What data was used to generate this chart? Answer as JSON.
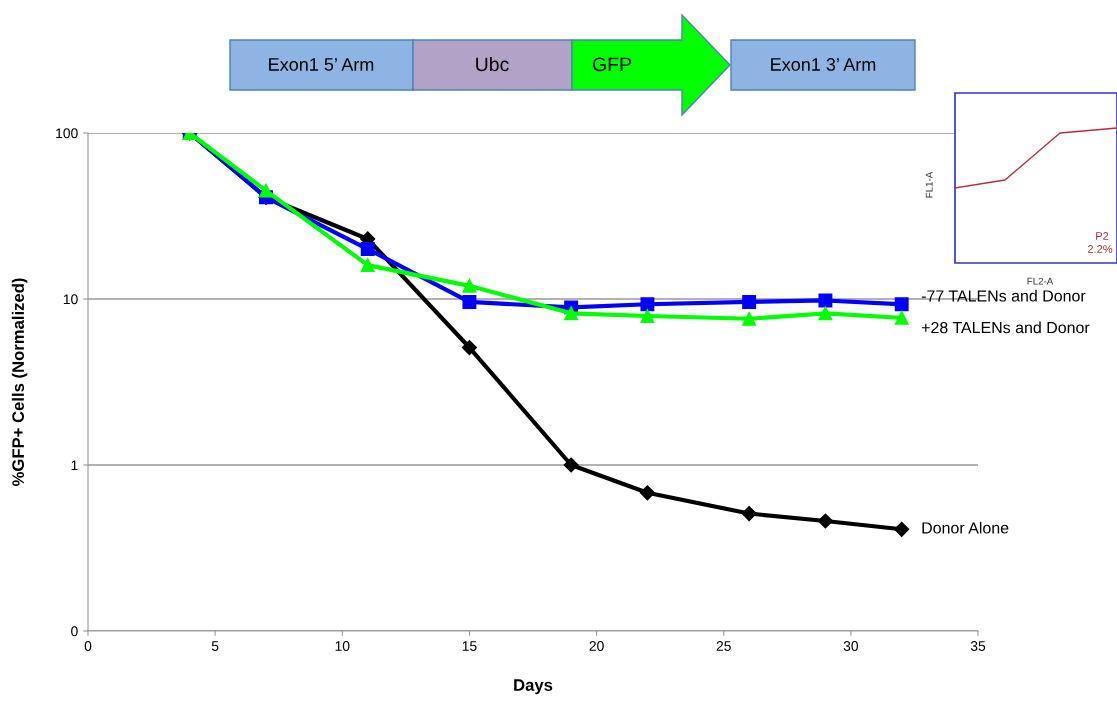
{
  "chart_data": {
    "type": "line",
    "xlabel": "Days",
    "ylabel": "%GFP+ Cells (Normalized)",
    "x": [
      4,
      7,
      11,
      15,
      19,
      22,
      26,
      29,
      32
    ],
    "series": [
      {
        "name": "Donor Alone",
        "color": "#000000",
        "marker": "diamond",
        "values": [
          100,
          41,
          23,
          5.1,
          1.0,
          0.68,
          0.51,
          0.46,
          0.41
        ]
      },
      {
        "name": "-77 TALENs and Donor",
        "color": "#0000ff",
        "marker": "square",
        "values": [
          100,
          41,
          20,
          9.6,
          8.9,
          9.3,
          9.6,
          9.8,
          9.3
        ]
      },
      {
        "name": "+28 TALENs and Donor",
        "color": "#00ff00",
        "marker": "triangle",
        "values": [
          100,
          45,
          16,
          12,
          8.2,
          7.9,
          7.6,
          8.2,
          7.7
        ]
      }
    ],
    "log": "y",
    "xlim": [
      0,
      35
    ],
    "xticks": [
      0,
      5,
      10,
      15,
      20,
      25,
      30,
      35
    ],
    "ylim": [
      0.1,
      100
    ],
    "yticks": [
      {
        "value": 0.1,
        "label": "0"
      },
      1,
      10,
      100
    ],
    "grid": "y",
    "legend": false,
    "line_style": "solid",
    "annotations": [
      "Exon1 5’ Arm",
      "Ubc",
      "GFP",
      "Exon1 3’ Arm",
      "FL1-A",
      "FL2-A",
      "P2",
      "2.2%"
    ]
  }
}
